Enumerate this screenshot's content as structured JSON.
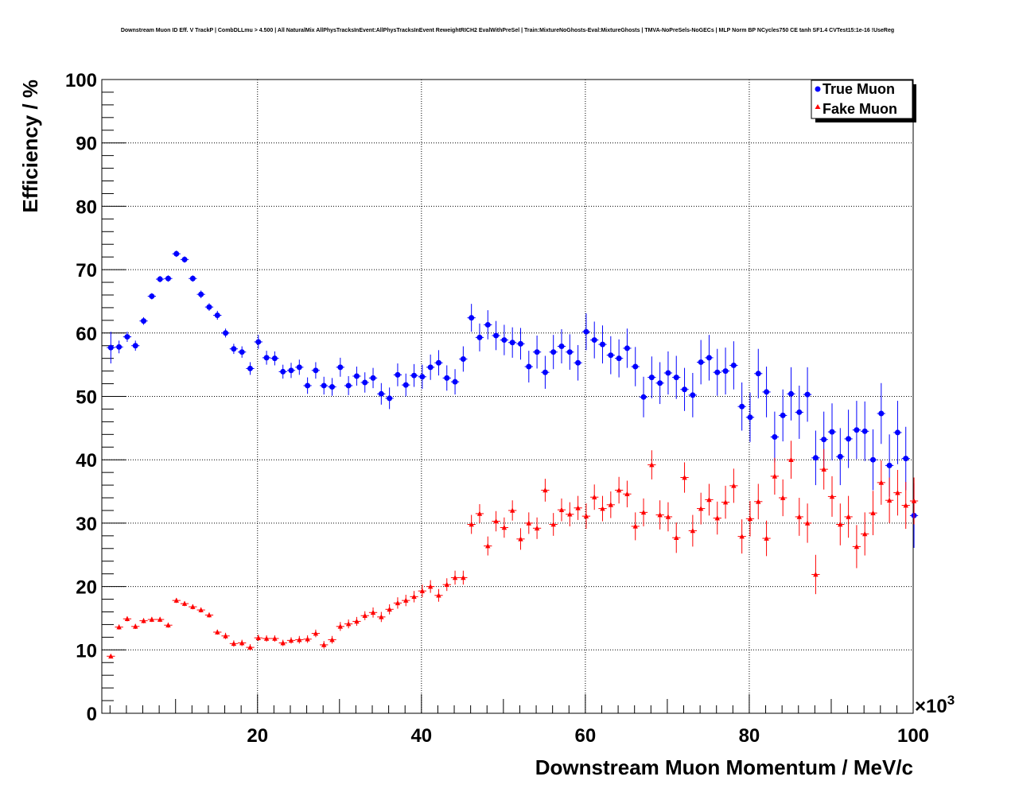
{
  "chart_data": {
    "type": "scatter",
    "title": "Downstream Muon ID Eff. V TrackP | CombDLLmu > 4.500 | All NaturalMix AllPhysTracksInEvent:AllPhysTracksInEvent ReweightRICH2 EvalWithPreSel | Train:MixtureNoGhosts-Eval:MixtureGhosts | TMVA-NoPreSels-NoGECs | MLP Norm BP NCycles750 CE tanh SF1.4 CVTest15:1e-16 !UseReg",
    "xlabel": "Downstream Muon Momentum / MeV/c",
    "ylabel": "Efficiency / %",
    "x_multiplier_label": "×10",
    "x_multiplier_exp": "3",
    "xlim": [
      1,
      100
    ],
    "ylim": [
      0,
      100
    ],
    "x_ticks": [
      "20",
      "40",
      "60",
      "80",
      "100"
    ],
    "y_ticks": [
      "0",
      "10",
      "20",
      "30",
      "40",
      "50",
      "60",
      "70",
      "80",
      "90",
      "100"
    ],
    "grid": true,
    "legend_position": "top-right",
    "series": [
      {
        "name": "True Muon",
        "color": "#0000ff",
        "marker": "circle",
        "x": [
          2.1,
          3.1,
          4.1,
          5.1,
          6.1,
          7.1,
          8.1,
          9.1,
          10.1,
          11.1,
          12.1,
          13.1,
          14.1,
          15.1,
          16.1,
          17.1,
          18.1,
          19.1,
          20.1,
          21.1,
          22.1,
          23.1,
          24.1,
          25.1,
          26.1,
          27.1,
          28.1,
          29.1,
          30.1,
          31.1,
          32.1,
          33.1,
          34.1,
          35.1,
          36.1,
          37.1,
          38.1,
          39.1,
          40.1,
          41.1,
          42.1,
          43.1,
          44.1,
          45.1,
          46.1,
          47.1,
          48.1,
          49.1,
          50.1,
          51.1,
          52.1,
          53.1,
          54.1,
          55.1,
          56.1,
          57.1,
          58.1,
          59.1,
          60.1,
          61.1,
          62.1,
          63.1,
          64.1,
          65.1,
          66.1,
          67.1,
          68.1,
          69.1,
          70.1,
          71.1,
          72.1,
          73.1,
          74.1,
          75.1,
          76.1,
          77.1,
          78.1,
          79.1,
          80.1,
          81.1,
          82.1,
          83.1,
          84.1,
          85.1,
          86.1,
          87.1,
          88.1,
          89.1,
          90.1,
          91.1,
          92.1,
          93.1,
          94.1,
          95.1,
          96.1,
          97.1,
          98.1,
          99.1,
          100.1
        ],
        "y": [
          57.7,
          57.8,
          59.4,
          58.0,
          61.9,
          65.8,
          68.5,
          68.6,
          72.5,
          71.6,
          68.6,
          66.1,
          64.1,
          62.8,
          60.0,
          57.5,
          57.0,
          54.4,
          58.6,
          56.1,
          56.0,
          53.9,
          54.1,
          54.6,
          51.7,
          54.1,
          51.7,
          51.5,
          54.6,
          51.7,
          53.2,
          52.2,
          52.9,
          50.4,
          49.7,
          53.4,
          51.8,
          53.3,
          53.1,
          54.6,
          55.3,
          52.9,
          52.3,
          55.9,
          62.4,
          59.3,
          61.3,
          59.6,
          58.9,
          58.5,
          58.3,
          54.7,
          57.0,
          53.8,
          57.0,
          57.9,
          57.0,
          55.3,
          60.2,
          58.9,
          58.2,
          56.5,
          56.0,
          57.6,
          54.7,
          49.9,
          53.0,
          52.1,
          53.7,
          53.0,
          51.1,
          50.2,
          55.4,
          56.1,
          53.8,
          54.0,
          54.9,
          48.4,
          46.7,
          53.6,
          50.7,
          43.6,
          47.0,
          50.4,
          47.5,
          50.3,
          40.3,
          43.2,
          44.4,
          40.5,
          43.3,
          44.7,
          44.5,
          40.0,
          47.3,
          39.1,
          44.3,
          40.2,
          31.2
        ],
        "err": [
          2.5,
          1.0,
          0.8,
          0.8,
          0.6,
          0.5,
          0.5,
          0.5,
          0.5,
          0.5,
          0.5,
          0.6,
          0.6,
          0.7,
          0.7,
          0.8,
          0.9,
          1.0,
          1.1,
          1.1,
          1.1,
          1.1,
          1.2,
          1.2,
          1.3,
          1.3,
          1.4,
          1.4,
          1.5,
          1.5,
          1.5,
          1.6,
          1.6,
          1.7,
          1.7,
          1.8,
          1.8,
          1.8,
          1.9,
          2.0,
          2.0,
          2.0,
          2.0,
          2.0,
          2.2,
          2.2,
          2.3,
          2.3,
          2.4,
          2.4,
          2.5,
          2.5,
          2.6,
          2.6,
          2.7,
          2.7,
          2.8,
          2.8,
          2.9,
          2.9,
          3.0,
          3.0,
          3.0,
          3.1,
          3.1,
          3.2,
          3.3,
          3.3,
          3.4,
          3.4,
          3.4,
          3.5,
          3.5,
          3.6,
          3.7,
          3.7,
          3.8,
          3.8,
          3.9,
          3.9,
          4.0,
          4.0,
          4.1,
          4.2,
          4.2,
          4.3,
          4.3,
          4.4,
          4.5,
          4.5,
          4.6,
          4.6,
          4.7,
          4.8,
          4.8,
          4.9,
          5.0,
          5.0,
          5.1
        ]
      },
      {
        "name": "Fake Muon",
        "color": "#ff0000",
        "marker": "triangle",
        "x": [
          2.1,
          3.1,
          4.1,
          5.1,
          6.1,
          7.1,
          8.1,
          9.1,
          10.1,
          11.1,
          12.1,
          13.1,
          14.1,
          15.1,
          16.1,
          17.1,
          18.1,
          19.1,
          20.1,
          21.1,
          22.1,
          23.1,
          24.1,
          25.1,
          26.1,
          27.1,
          28.1,
          29.1,
          30.1,
          31.1,
          32.1,
          33.1,
          34.1,
          35.1,
          36.1,
          37.1,
          38.1,
          39.1,
          40.1,
          41.1,
          42.1,
          43.1,
          44.1,
          45.1,
          46.1,
          47.1,
          48.1,
          49.1,
          50.1,
          51.1,
          52.1,
          53.1,
          54.1,
          55.1,
          56.1,
          57.1,
          58.1,
          59.1,
          60.1,
          61.1,
          62.1,
          63.1,
          64.1,
          65.1,
          66.1,
          67.1,
          68.1,
          69.1,
          70.1,
          71.1,
          72.1,
          73.1,
          74.1,
          75.1,
          76.1,
          77.1,
          78.1,
          79.1,
          80.1,
          81.1,
          82.1,
          83.1,
          84.1,
          85.1,
          86.1,
          87.1,
          88.1,
          89.1,
          90.1,
          91.1,
          92.1,
          93.1,
          94.1,
          95.1,
          96.1,
          97.1,
          98.1,
          99.1,
          100.1
        ],
        "y": [
          9.0,
          13.6,
          14.9,
          13.7,
          14.6,
          14.8,
          14.8,
          13.9,
          17.8,
          17.3,
          16.8,
          16.3,
          15.5,
          12.8,
          12.2,
          11.0,
          11.1,
          10.4,
          11.9,
          11.8,
          11.8,
          11.1,
          11.5,
          11.6,
          11.7,
          12.6,
          10.8,
          11.6,
          13.7,
          14.1,
          14.5,
          15.4,
          15.9,
          15.2,
          16.4,
          17.4,
          17.8,
          18.4,
          19.3,
          20.0,
          18.6,
          20.3,
          21.4,
          21.4,
          29.8,
          31.5,
          26.4,
          30.3,
          29.3,
          32.0,
          27.5,
          30.0,
          29.2,
          35.2,
          29.8,
          32.1,
          31.4,
          32.4,
          31.1,
          34.1,
          32.3,
          32.9,
          35.2,
          34.6,
          29.5,
          31.7,
          39.2,
          31.3,
          31.0,
          27.7,
          37.2,
          28.8,
          32.3,
          33.7,
          30.8,
          33.3,
          35.9,
          27.9,
          30.7,
          33.4,
          27.6,
          37.4,
          34.0,
          40.0,
          31.0,
          30.0,
          21.9,
          38.5,
          34.2,
          29.8,
          31.0,
          26.3,
          28.3,
          31.6,
          36.4,
          33.6,
          34.8,
          32.8,
          33.5
        ],
        "err": [
          0.3,
          0.4,
          0.4,
          0.4,
          0.4,
          0.4,
          0.4,
          0.4,
          0.4,
          0.4,
          0.4,
          0.4,
          0.4,
          0.4,
          0.5,
          0.5,
          0.5,
          0.5,
          0.5,
          0.5,
          0.5,
          0.5,
          0.5,
          0.6,
          0.6,
          0.6,
          0.6,
          0.6,
          0.7,
          0.7,
          0.7,
          0.7,
          0.8,
          0.8,
          0.8,
          0.9,
          0.9,
          0.9,
          1.0,
          1.0,
          1.0,
          1.0,
          1.1,
          1.1,
          1.5,
          1.5,
          1.5,
          1.6,
          1.6,
          1.6,
          1.7,
          1.7,
          1.7,
          1.8,
          1.8,
          1.8,
          1.9,
          1.9,
          2.0,
          2.0,
          2.0,
          2.1,
          2.1,
          2.1,
          2.2,
          2.2,
          2.3,
          2.3,
          2.3,
          2.4,
          2.4,
          2.5,
          2.5,
          2.5,
          2.6,
          2.6,
          2.7,
          2.7,
          2.8,
          2.8,
          2.8,
          2.9,
          2.9,
          3.0,
          3.0,
          3.1,
          3.1,
          3.2,
          3.2,
          3.3,
          3.3,
          3.4,
          3.4,
          3.5,
          3.5,
          3.6,
          3.6,
          3.7,
          3.7
        ]
      }
    ]
  }
}
